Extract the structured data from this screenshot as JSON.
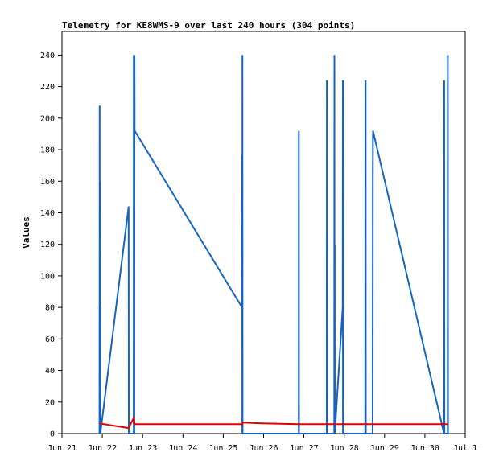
{
  "chart_data": {
    "type": "line",
    "title": "Telemetry for KE8WMS-9 over last 240 hours (304 points)",
    "xlabel": "",
    "ylabel": "Values",
    "x_range": [
      "2024-06-21T00:00",
      "2024-07-01T00:00"
    ],
    "x_ticks": [
      {
        "x": "2024-06-21T00:00",
        "label": "Jun 21"
      },
      {
        "x": "2024-06-22T00:00",
        "label": "Jun 22"
      },
      {
        "x": "2024-06-23T00:00",
        "label": "Jun 23"
      },
      {
        "x": "2024-06-24T00:00",
        "label": "Jun 24"
      },
      {
        "x": "2024-06-25T00:00",
        "label": "Jun 25"
      },
      {
        "x": "2024-06-26T00:00",
        "label": "Jun 26"
      },
      {
        "x": "2024-06-27T00:00",
        "label": "Jun 27"
      },
      {
        "x": "2024-06-28T00:00",
        "label": "Jun 28"
      },
      {
        "x": "2024-06-29T00:00",
        "label": "Jun 29"
      },
      {
        "x": "2024-06-30T00:00",
        "label": "Jun 30"
      },
      {
        "x": "2024-07-01T00:00",
        "label": "Jul 1"
      }
    ],
    "ylim": [
      0,
      255
    ],
    "y_ticks": [
      0,
      20,
      40,
      60,
      80,
      100,
      120,
      140,
      160,
      180,
      200,
      220,
      240
    ],
    "grid": false,
    "series": [
      {
        "color": "#1565c0",
        "points": [
          [
            "2024-06-21T22:20",
            0
          ],
          [
            "2024-06-21T22:25",
            208
          ],
          [
            "2024-06-21T22:30",
            0
          ],
          [
            "2024-06-21T22:35",
            160
          ],
          [
            "2024-06-21T22:40",
            0
          ],
          [
            "2024-06-21T22:45",
            80
          ],
          [
            "2024-06-21T22:50",
            0
          ],
          [
            "2024-06-22T15:40",
            144
          ],
          [
            "2024-06-22T15:45",
            0
          ],
          [
            "2024-06-22T18:40",
            0
          ],
          [
            "2024-06-22T18:45",
            240
          ],
          [
            "2024-06-22T18:50",
            0
          ],
          [
            "2024-06-22T19:05",
            0
          ],
          [
            "2024-06-22T19:10",
            240
          ],
          [
            "2024-06-22T19:15",
            192
          ],
          [
            "2024-06-25T11:10",
            80
          ],
          [
            "2024-06-25T11:15",
            176
          ],
          [
            "2024-06-25T11:20",
            0
          ],
          [
            "2024-06-25T11:25",
            240
          ],
          [
            "2024-06-25T11:30",
            0
          ],
          [
            "2024-06-26T20:55",
            0
          ],
          [
            "2024-06-26T21:00",
            192
          ],
          [
            "2024-06-26T21:05",
            0
          ],
          [
            "2024-06-27T13:35",
            0
          ],
          [
            "2024-06-27T13:40",
            224
          ],
          [
            "2024-06-27T13:45",
            0
          ],
          [
            "2024-06-27T13:50",
            128
          ],
          [
            "2024-06-27T13:55",
            0
          ],
          [
            "2024-06-27T18:05",
            0
          ],
          [
            "2024-06-27T18:10",
            240
          ],
          [
            "2024-06-27T18:15",
            0
          ],
          [
            "2024-06-27T18:20",
            120
          ],
          [
            "2024-06-27T18:25",
            0
          ],
          [
            "2024-06-27T23:05",
            80
          ],
          [
            "2024-06-27T23:10",
            224
          ],
          [
            "2024-06-27T23:15",
            0
          ],
          [
            "2024-06-27T23:20",
            224
          ],
          [
            "2024-06-27T23:25",
            0
          ],
          [
            "2024-06-28T12:30",
            0
          ],
          [
            "2024-06-28T12:35",
            224
          ],
          [
            "2024-06-28T12:40",
            0
          ],
          [
            "2024-06-28T12:45",
            224
          ],
          [
            "2024-06-28T12:50",
            0
          ],
          [
            "2024-06-28T16:55",
            0
          ],
          [
            "2024-06-28T17:00",
            160
          ],
          [
            "2024-06-28T17:05",
            192
          ],
          [
            "2024-06-30T11:25",
            0
          ],
          [
            "2024-06-30T11:30",
            224
          ],
          [
            "2024-06-30T11:35",
            0
          ],
          [
            "2024-06-30T13:35",
            0
          ],
          [
            "2024-06-30T13:40",
            240
          ],
          [
            "2024-06-30T13:45",
            0
          ]
        ]
      },
      {
        "color": "#e00000",
        "points": [
          [
            "2024-06-21T22:20",
            6.5
          ],
          [
            "2024-06-22T15:40",
            3.5
          ],
          [
            "2024-06-22T18:45",
            10
          ],
          [
            "2024-06-22T19:15",
            6
          ],
          [
            "2024-06-25T11:20",
            6
          ],
          [
            "2024-06-25T11:30",
            7
          ],
          [
            "2024-06-25T23:00",
            6.5
          ],
          [
            "2024-06-26T21:00",
            6
          ],
          [
            "2024-06-30T13:45",
            6
          ]
        ]
      }
    ]
  }
}
